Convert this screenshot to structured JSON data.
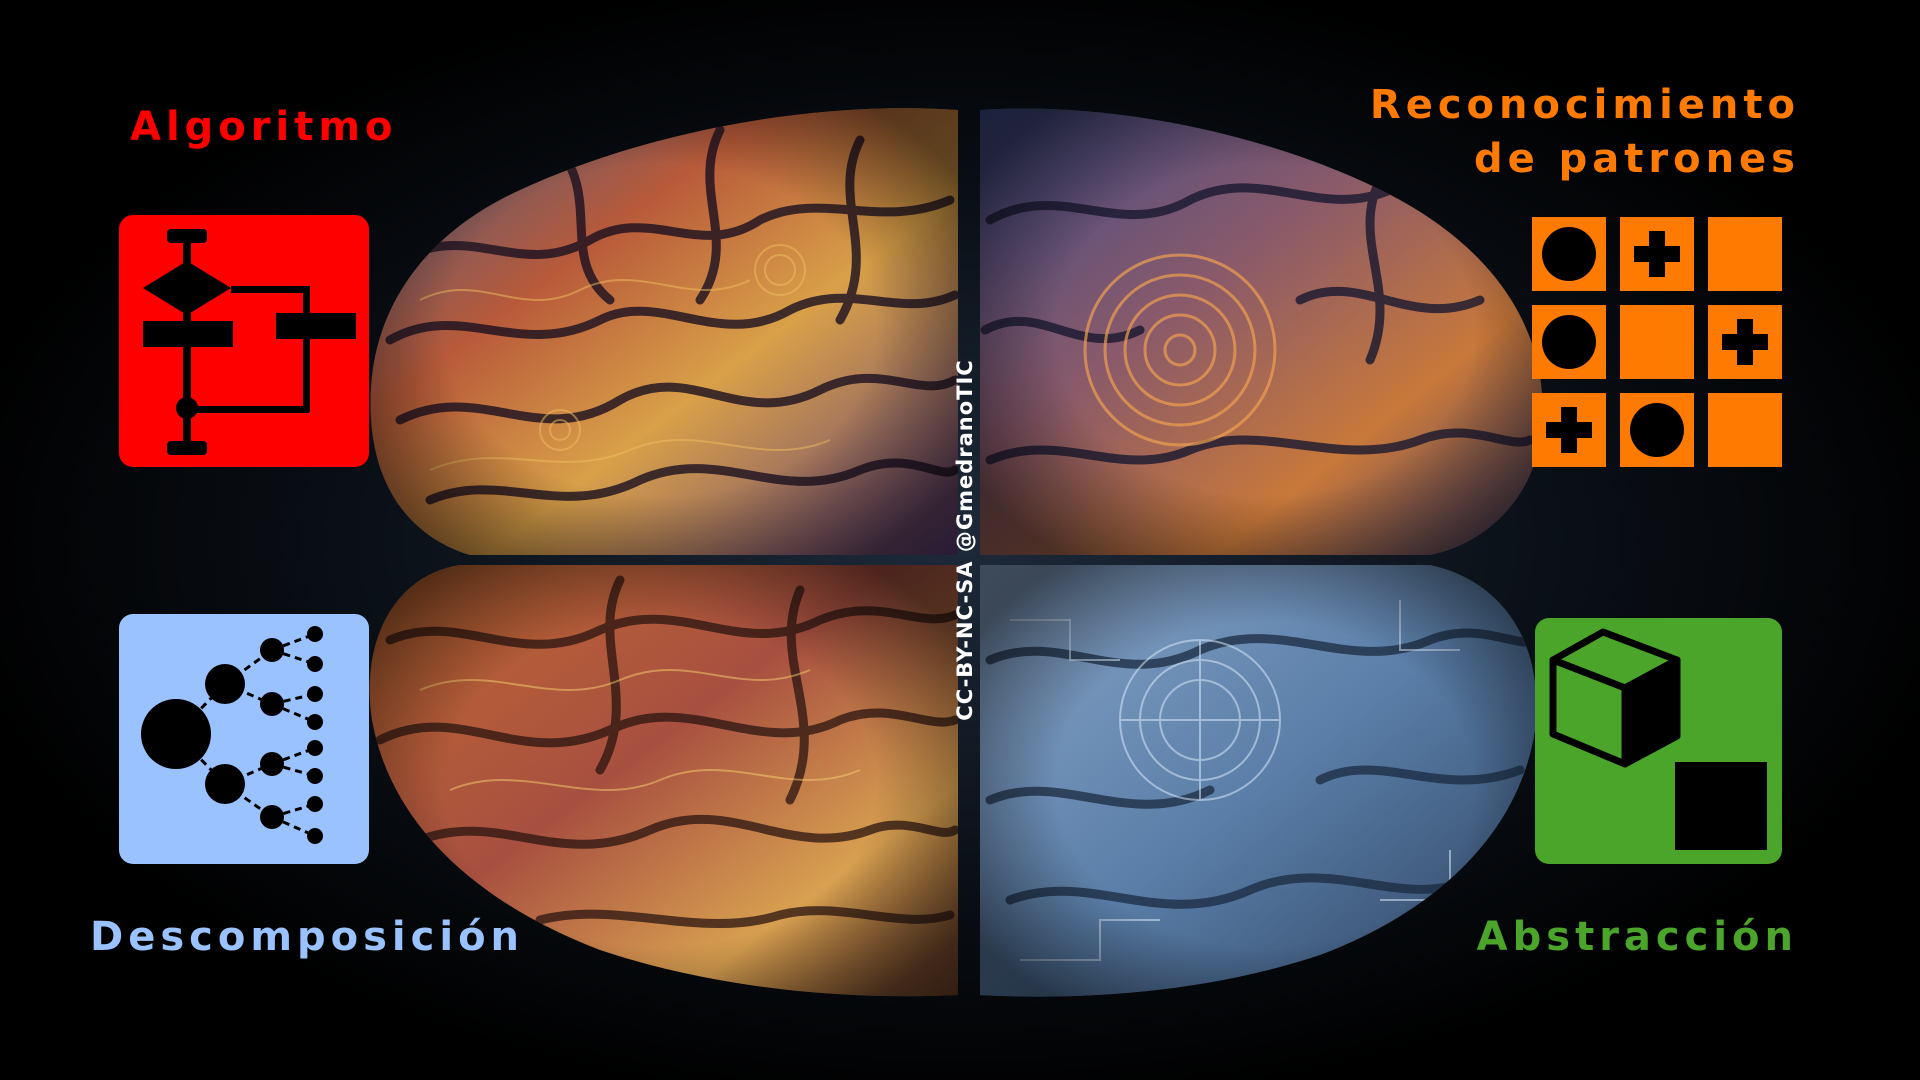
{
  "labels": {
    "algoritmo": "Algoritmo",
    "reconocimiento_line1": "Reconocimiento",
    "reconocimiento_line2": "de patrones",
    "descomposicion": "Descomposición",
    "abstraccion": "Abstracción"
  },
  "credit": "CC-BY-NC-SA @GmedranoTIC",
  "colors": {
    "algoritmo": "#ff0000",
    "reconocimiento": "#ff7a00",
    "descomposicion": "#99c2ff",
    "abstraccion": "#4aa52a"
  },
  "icons": {
    "algoritmo": "flowchart-icon",
    "reconocimiento": "pattern-grid-icon",
    "descomposicion": "tree-decomposition-icon",
    "abstraccion": "cube-square-icon"
  }
}
